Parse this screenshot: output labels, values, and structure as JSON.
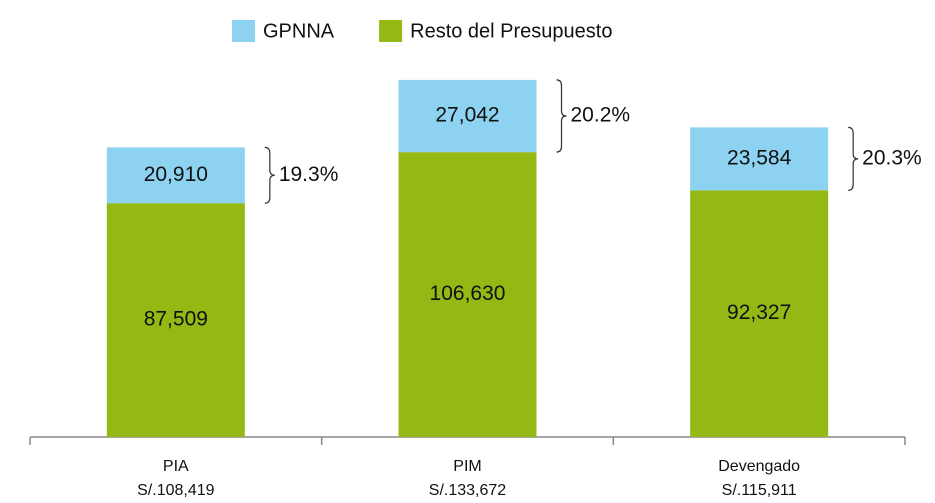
{
  "chart_data": {
    "type": "stacked_bar",
    "categories": [
      "PIA",
      "PIM",
      "Devengado"
    ],
    "category_totals": [
      "S/.108,419",
      "S/.133,672",
      "S/.115,911"
    ],
    "series": [
      {
        "name": "Resto del Presupuesto",
        "color": "#94b814",
        "values": [
          87509,
          106630,
          92327
        ],
        "value_labels": [
          "87,509",
          "106,630",
          "92,327"
        ]
      },
      {
        "name": "GPNNA",
        "color": "#8dd2f0",
        "values": [
          20910,
          27042,
          23584
        ],
        "value_labels": [
          "20,910",
          "27,042",
          "23,584"
        ]
      }
    ],
    "annotations": [
      "19.3%",
      "20.2%",
      "20.3%"
    ],
    "ylim": [
      0,
      140000
    ]
  }
}
